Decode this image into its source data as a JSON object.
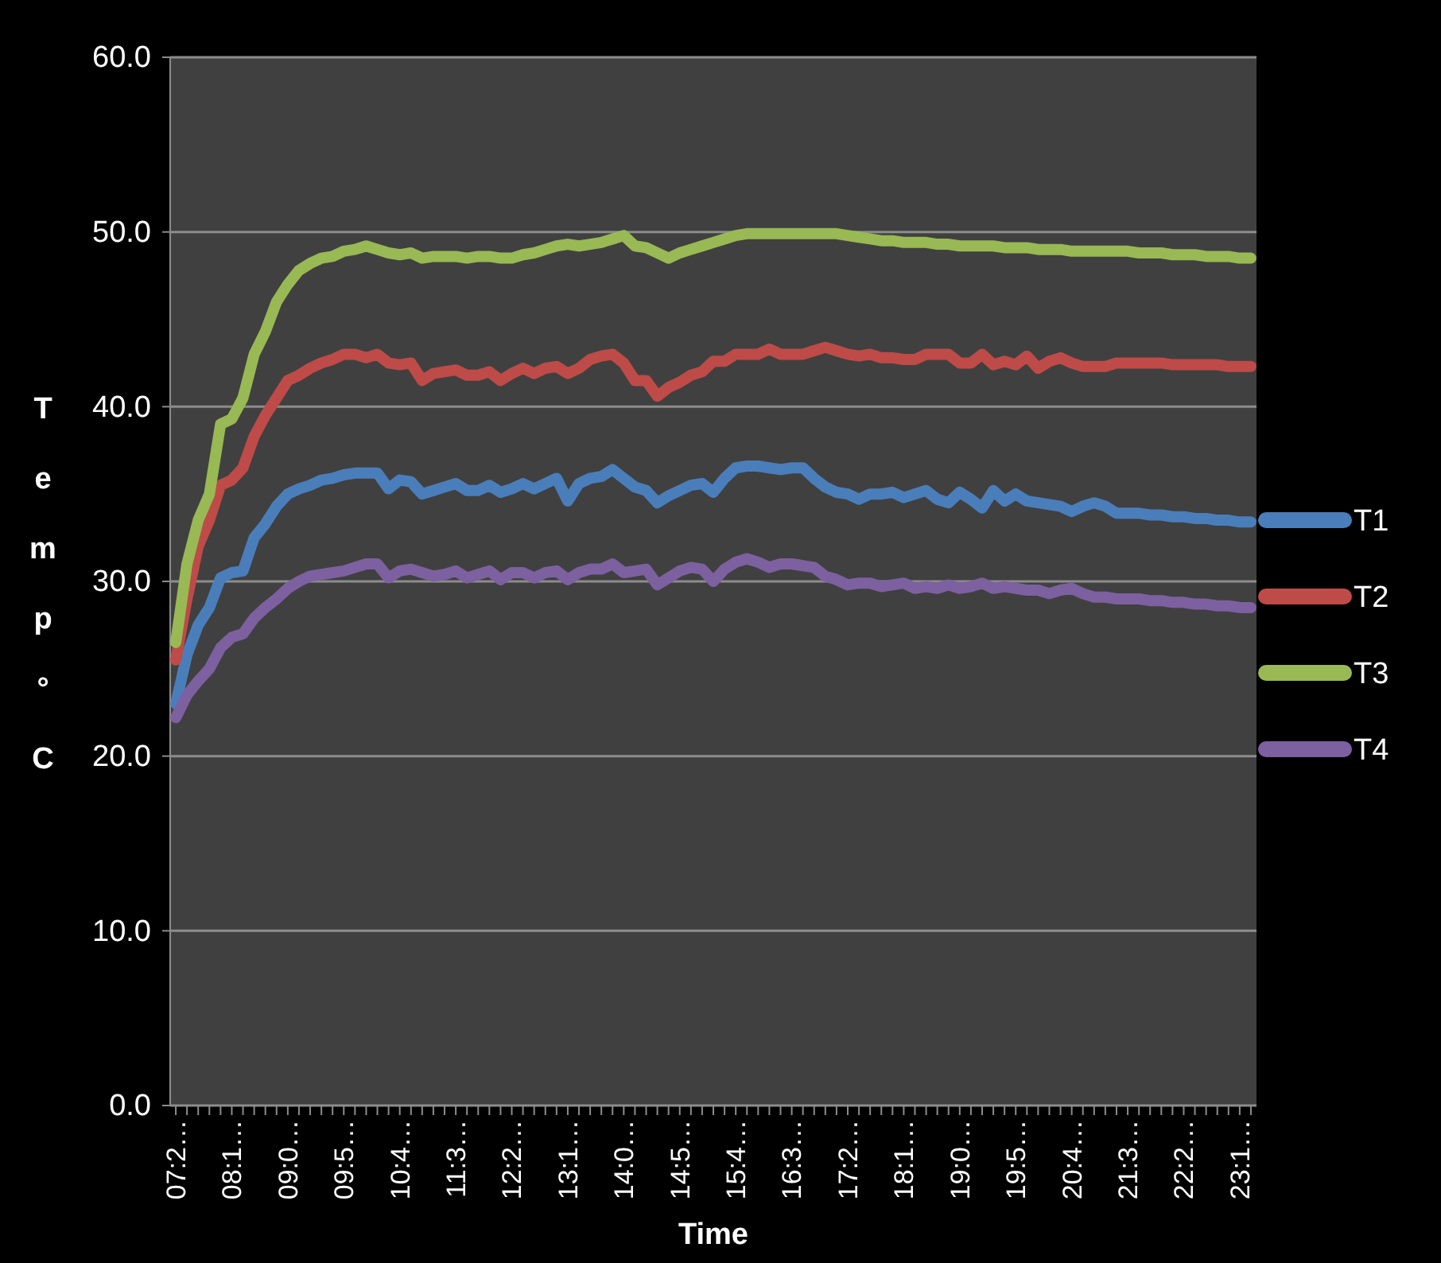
{
  "chart_data": {
    "type": "line",
    "xlabel": "Time",
    "ylabel": "Temp °C",
    "categories": [
      "07:2…",
      null,
      null,
      null,
      null,
      "08:1…",
      null,
      null,
      null,
      null,
      "09:0…",
      null,
      null,
      null,
      null,
      "09:5…",
      null,
      null,
      null,
      null,
      "10:4…",
      null,
      null,
      null,
      null,
      "11:3…",
      null,
      null,
      null,
      null,
      "12:2…",
      null,
      null,
      null,
      null,
      "13:1…",
      null,
      null,
      null,
      null,
      "14:0…",
      null,
      null,
      null,
      null,
      "14:5…",
      null,
      null,
      null,
      null,
      "15:4…",
      null,
      null,
      null,
      null,
      "16:3…",
      null,
      null,
      null,
      null,
      "17:2…",
      null,
      null,
      null,
      null,
      "18:1…",
      null,
      null,
      null,
      null,
      "19:0…",
      null,
      null,
      null,
      null,
      "19:5…",
      null,
      null,
      null,
      null,
      "20:4…",
      null,
      null,
      null,
      null,
      "21:3…",
      null,
      null,
      null,
      null,
      "22:2…",
      null,
      null,
      null,
      null,
      "23:1…",
      null
    ],
    "ylim": [
      0,
      60
    ],
    "yticks": [
      {
        "value": 0,
        "label": "0.0"
      },
      {
        "value": 10,
        "label": "10.0"
      },
      {
        "value": 20,
        "label": "20.0"
      },
      {
        "value": 30,
        "label": "30.0"
      },
      {
        "value": 40,
        "label": "40.0"
      },
      {
        "value": 50,
        "label": "50.0"
      },
      {
        "value": 60,
        "label": "60.0"
      }
    ],
    "grid": "y",
    "legend": "right",
    "marker": "none",
    "line_style": "solid",
    "series": [
      {
        "name": "T1",
        "color": "#4a7ebb",
        "values": [
          23,
          25.8,
          27.5,
          28.5,
          30.2,
          30.5,
          30.6,
          32.5,
          33.3,
          34.3,
          35,
          35.3,
          35.5,
          35.8,
          35.9,
          36.1,
          36.2,
          36.2,
          36.2,
          35.3,
          35.8,
          35.7,
          35,
          35.2,
          35.4,
          35.6,
          35.2,
          35.2,
          35.5,
          35.1,
          35.3,
          35.6,
          35.3,
          35.6,
          35.9,
          34.6,
          35.6,
          35.9,
          36,
          36.4,
          35.9,
          35.4,
          35.2,
          34.5,
          34.9,
          35.2,
          35.5,
          35.6,
          35.1,
          35.9,
          36.5,
          36.6,
          36.6,
          36.5,
          36.4,
          36.5,
          36.5,
          35.9,
          35.4,
          35.1,
          35,
          34.7,
          35,
          35,
          35.1,
          34.8,
          35,
          35.2,
          34.7,
          34.5,
          35.1,
          34.7,
          34.2,
          35.2,
          34.6,
          35,
          34.6,
          34.5,
          34.4,
          34.3,
          34,
          34.3,
          34.5,
          34.3,
          33.9,
          33.9,
          33.9,
          33.8,
          33.8,
          33.7,
          33.7,
          33.6,
          33.6,
          33.5,
          33.5,
          33.4,
          33.4
        ]
      },
      {
        "name": "T2",
        "color": "#be4b48",
        "values": [
          25.5,
          29,
          32,
          33.5,
          35.5,
          35.8,
          36.5,
          38.3,
          39.5,
          40.5,
          41.5,
          41.8,
          42.2,
          42.5,
          42.7,
          43,
          43,
          42.8,
          43,
          42.5,
          42.4,
          42.5,
          41.5,
          41.9,
          42,
          42.1,
          41.8,
          41.8,
          42,
          41.5,
          41.9,
          42.2,
          41.9,
          42.2,
          42.3,
          41.9,
          42.2,
          42.7,
          42.9,
          43,
          42.5,
          41.5,
          41.5,
          40.6,
          41.1,
          41.4,
          41.8,
          42,
          42.6,
          42.6,
          43,
          43,
          43,
          43.3,
          43,
          43,
          43,
          43.2,
          43.4,
          43.2,
          43,
          42.9,
          43,
          42.8,
          42.8,
          42.7,
          42.7,
          43,
          43,
          43,
          42.5,
          42.5,
          43,
          42.4,
          42.6,
          42.4,
          42.9,
          42.2,
          42.6,
          42.8,
          42.5,
          42.3,
          42.3,
          42.3,
          42.5,
          42.5,
          42.5,
          42.5,
          42.5,
          42.4,
          42.4,
          42.4,
          42.4,
          42.4,
          42.3,
          42.3,
          42.3
        ]
      },
      {
        "name": "T3",
        "color": "#98b954",
        "values": [
          26.5,
          31,
          33.5,
          35,
          39,
          39.3,
          40.5,
          43,
          44.3,
          46,
          47,
          47.8,
          48.2,
          48.5,
          48.6,
          48.9,
          49,
          49.2,
          49,
          48.8,
          48.7,
          48.8,
          48.5,
          48.6,
          48.6,
          48.6,
          48.5,
          48.6,
          48.6,
          48.5,
          48.5,
          48.7,
          48.8,
          49,
          49.2,
          49.3,
          49.2,
          49.3,
          49.4,
          49.6,
          49.8,
          49.2,
          49.1,
          48.8,
          48.5,
          48.8,
          49,
          49.2,
          49.4,
          49.6,
          49.8,
          49.9,
          49.9,
          49.9,
          49.9,
          49.9,
          49.9,
          49.9,
          49.9,
          49.9,
          49.8,
          49.7,
          49.6,
          49.5,
          49.5,
          49.4,
          49.4,
          49.4,
          49.3,
          49.3,
          49.2,
          49.2,
          49.2,
          49.2,
          49.1,
          49.1,
          49.1,
          49,
          49,
          49,
          48.9,
          48.9,
          48.9,
          48.9,
          48.9,
          48.9,
          48.8,
          48.8,
          48.8,
          48.7,
          48.7,
          48.7,
          48.6,
          48.6,
          48.6,
          48.5,
          48.5
        ]
      },
      {
        "name": "T4",
        "color": "#7d60a0",
        "values": [
          22.2,
          23.5,
          24.3,
          25,
          26.2,
          26.8,
          27,
          27.9,
          28.5,
          29,
          29.6,
          30,
          30.3,
          30.4,
          30.5,
          30.6,
          30.8,
          31,
          31,
          30.2,
          30.6,
          30.7,
          30.5,
          30.3,
          30.4,
          30.6,
          30.2,
          30.4,
          30.6,
          30.1,
          30.5,
          30.5,
          30.2,
          30.5,
          30.6,
          30.1,
          30.5,
          30.7,
          30.7,
          31,
          30.5,
          30.6,
          30.7,
          29.8,
          30.2,
          30.6,
          30.8,
          30.7,
          30,
          30.7,
          31.1,
          31.3,
          31.1,
          30.8,
          31,
          31,
          30.9,
          30.8,
          30.3,
          30.1,
          29.8,
          29.9,
          29.9,
          29.7,
          29.8,
          29.9,
          29.6,
          29.7,
          29.6,
          29.8,
          29.6,
          29.7,
          29.9,
          29.6,
          29.7,
          29.6,
          29.5,
          29.5,
          29.3,
          29.5,
          29.6,
          29.3,
          29.1,
          29.1,
          29,
          29,
          29,
          28.9,
          28.9,
          28.8,
          28.8,
          28.7,
          28.7,
          28.6,
          28.6,
          28.5,
          28.5
        ]
      }
    ]
  }
}
